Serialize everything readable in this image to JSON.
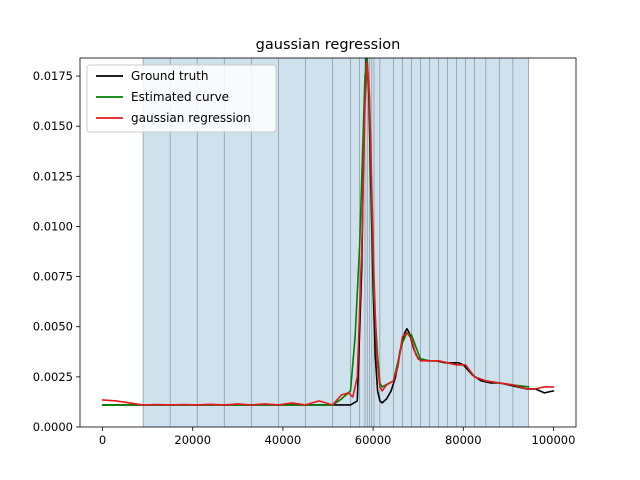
{
  "chart_data": {
    "type": "line",
    "title": "gaussian regression",
    "xlabel": "",
    "ylabel": "",
    "xlim": [
      -5000,
      105000
    ],
    "ylim": [
      0.0,
      0.0184
    ],
    "xticks": [
      0,
      20000,
      40000,
      60000,
      80000,
      100000
    ],
    "xtick_labels": [
      "0",
      "20000",
      "40000",
      "60000",
      "80000",
      "100000"
    ],
    "yticks": [
      0.0,
      0.0025,
      0.005,
      0.0075,
      0.01,
      0.0125,
      0.015,
      0.0175
    ],
    "ytick_labels": [
      "0.0000",
      "0.0025",
      "0.0050",
      "0.0075",
      "0.0100",
      "0.0125",
      "0.0150",
      "0.0175"
    ],
    "grid": false,
    "legend_position": "top-left",
    "shaded_region": {
      "x": [
        9000,
        94500
      ],
      "color": "#d0e1ee"
    },
    "vertical_lines": [
      9000,
      15000,
      21000,
      27000,
      33000,
      39000,
      45000,
      51000,
      55000,
      57000,
      58200,
      58700,
      59200,
      59700,
      60200,
      61500,
      64500,
      66500,
      68500,
      70500,
      72500,
      74500,
      76500,
      78500,
      80500,
      82500,
      85000,
      88000,
      91000,
      94500
    ],
    "series": [
      {
        "name": "Ground truth",
        "color": "#000000",
        "x": [
          0,
          9000,
          20000,
          30000,
          40000,
          50000,
          55000,
          56500,
          57500,
          58000,
          58500,
          59000,
          59500,
          60000,
          60500,
          61000,
          61500,
          62000,
          63000,
          64000,
          65000,
          66000,
          67000,
          67500,
          68000,
          69000,
          70000,
          72000,
          74000,
          76000,
          78000,
          79000,
          80000,
          82000,
          84000,
          86000,
          88000,
          90000,
          92000,
          94000,
          96000,
          98000,
          100000
        ],
        "values": [
          0.0011,
          0.0011,
          0.0011,
          0.0011,
          0.0011,
          0.0011,
          0.0011,
          0.0013,
          0.008,
          0.0155,
          0.0184,
          0.017,
          0.012,
          0.007,
          0.0035,
          0.0018,
          0.0013,
          0.0012,
          0.0014,
          0.0018,
          0.0025,
          0.0038,
          0.0047,
          0.0049,
          0.0047,
          0.0039,
          0.0034,
          0.0033,
          0.0033,
          0.0032,
          0.0032,
          0.0032,
          0.0031,
          0.0026,
          0.0023,
          0.0022,
          0.0022,
          0.0021,
          0.002,
          0.0019,
          0.0019,
          0.0017,
          0.0018
        ]
      },
      {
        "name": "Estimated curve",
        "color": "#008000",
        "x": [
          0,
          9000,
          15000,
          21000,
          27000,
          33000,
          39000,
          45000,
          51000,
          53000,
          55000,
          56000,
          57000,
          58200,
          58700,
          59200,
          59700,
          60200,
          61000,
          61500,
          62000,
          64500,
          66500,
          67500,
          68500,
          70500,
          72500,
          74500,
          76500,
          78500,
          80500,
          82500,
          85000,
          88000,
          91000,
          94500
        ],
        "values": [
          0.0011,
          0.0011,
          0.0011,
          0.0011,
          0.0011,
          0.0011,
          0.0011,
          0.0011,
          0.0011,
          0.0014,
          0.0018,
          0.0045,
          0.009,
          0.0175,
          0.0184,
          0.016,
          0.011,
          0.0065,
          0.0035,
          0.0022,
          0.002,
          0.0023,
          0.0042,
          0.0047,
          0.0046,
          0.0034,
          0.0033,
          0.0033,
          0.0032,
          0.0031,
          0.0031,
          0.0025,
          0.0023,
          0.0022,
          0.0021,
          0.002
        ]
      },
      {
        "name": "gaussian regression",
        "color": "#e41a1c",
        "x": [
          0,
          3000,
          6000,
          9000,
          12000,
          15000,
          18000,
          21000,
          24000,
          27000,
          30000,
          33000,
          36000,
          39000,
          42000,
          45000,
          48000,
          51000,
          53000,
          54500,
          55500,
          56500,
          57500,
          58200,
          58700,
          59200,
          59700,
          60200,
          60800,
          61500,
          62000,
          63000,
          64500,
          65500,
          66500,
          67500,
          68500,
          69500,
          70500,
          72500,
          74500,
          76500,
          78500,
          80500,
          82500,
          85000,
          88000,
          91000,
          94000,
          96000,
          98000,
          100000
        ],
        "values": [
          0.00135,
          0.0013,
          0.0012,
          0.0011,
          0.00112,
          0.0011,
          0.00112,
          0.0011,
          0.00113,
          0.0011,
          0.00115,
          0.0011,
          0.00115,
          0.0011,
          0.0012,
          0.0011,
          0.0013,
          0.0011,
          0.0016,
          0.0017,
          0.0015,
          0.0025,
          0.009,
          0.016,
          0.0182,
          0.0165,
          0.012,
          0.0075,
          0.0035,
          0.002,
          0.0018,
          0.0021,
          0.0023,
          0.003,
          0.0045,
          0.0047,
          0.0044,
          0.0036,
          0.0033,
          0.0033,
          0.0033,
          0.0032,
          0.0031,
          0.0031,
          0.0025,
          0.0023,
          0.0022,
          0.0021,
          0.0019,
          0.0019,
          0.002,
          0.002
        ]
      }
    ]
  }
}
